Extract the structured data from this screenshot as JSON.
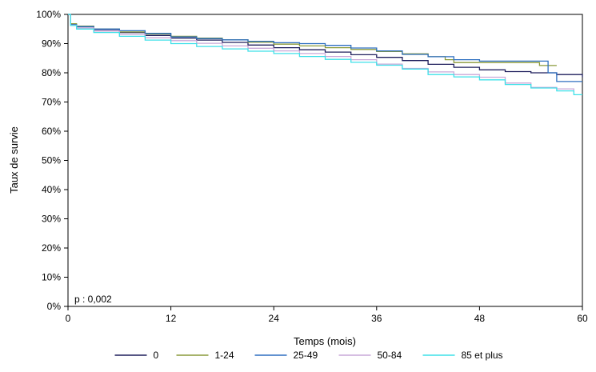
{
  "chart_data": {
    "type": "line",
    "xlabel": "Temps (mois)",
    "ylabel": "Taux de survie",
    "xlim": [
      0,
      60
    ],
    "ylim": [
      0,
      100
    ],
    "xticks": [
      0,
      12,
      24,
      36,
      48,
      60
    ],
    "yticks": [
      0,
      10,
      20,
      30,
      40,
      50,
      60,
      70,
      80,
      90,
      100
    ],
    "ytick_suffix": "%",
    "grid": false,
    "legend_position": "bottom",
    "annotation": "p : 0,002",
    "series": [
      {
        "name": "0",
        "color": "#1f1f5c",
        "x": [
          0,
          0.3,
          1,
          3,
          6,
          9,
          12,
          15,
          18,
          21,
          24,
          27,
          30,
          33,
          36,
          39,
          42,
          45,
          48,
          51,
          54,
          57,
          60
        ],
        "y": [
          100,
          96.5,
          95.8,
          94.8,
          93.8,
          92.8,
          91.9,
          91.2,
          90.4,
          89.5,
          88.6,
          87.9,
          87.1,
          86.2,
          85.3,
          84.2,
          82.9,
          81.9,
          81.0,
          80.4,
          80.0,
          79.4,
          78.5
        ]
      },
      {
        "name": "1-24",
        "color": "#8a9a3a",
        "x": [
          0,
          0.3,
          1,
          3,
          6,
          9,
          12,
          15,
          18,
          21,
          24,
          27,
          30,
          33,
          36,
          39,
          42,
          44,
          45,
          48,
          51,
          54,
          55,
          57
        ],
        "y": [
          100,
          96.8,
          96.0,
          95.0,
          94.0,
          93.3,
          92.5,
          91.9,
          91.3,
          90.5,
          89.8,
          89.2,
          88.6,
          88.0,
          87.3,
          86.5,
          85.5,
          84.5,
          83.5,
          83.5,
          83.5,
          83.5,
          82.5,
          82.5
        ]
      },
      {
        "name": "25-49",
        "color": "#2e6fc0",
        "x": [
          0,
          0.3,
          1,
          3,
          6,
          9,
          12,
          15,
          18,
          21,
          24,
          27,
          30,
          33,
          36,
          39,
          42,
          45,
          48,
          51,
          54,
          56,
          57,
          60
        ],
        "y": [
          100,
          96.5,
          95.8,
          95.0,
          94.4,
          93.5,
          92.3,
          91.7,
          91.3,
          90.8,
          90.3,
          90.0,
          89.4,
          88.5,
          87.5,
          86.3,
          85.5,
          84.5,
          84.0,
          84.0,
          84.0,
          80.0,
          77.0,
          77.0
        ]
      },
      {
        "name": "50-84",
        "color": "#c9a8d8",
        "x": [
          0,
          0.3,
          1,
          3,
          6,
          9,
          12,
          15,
          18,
          21,
          24,
          27,
          30,
          33,
          36,
          39,
          42,
          45,
          48,
          51,
          54,
          57,
          59
        ],
        "y": [
          100,
          96.3,
          95.4,
          94.3,
          93.2,
          92.0,
          91.0,
          90.1,
          89.2,
          88.4,
          87.5,
          86.6,
          85.6,
          84.5,
          83.0,
          81.5,
          80.3,
          79.4,
          78.5,
          76.5,
          75.0,
          74.5,
          74.0
        ]
      },
      {
        "name": "85 et plus",
        "color": "#3ee0e8",
        "x": [
          0,
          0.3,
          1,
          3,
          6,
          9,
          12,
          15,
          18,
          21,
          24,
          27,
          30,
          33,
          36,
          39,
          42,
          45,
          48,
          51,
          54,
          57,
          59,
          60
        ],
        "y": [
          100,
          96.2,
          95.0,
          93.8,
          92.5,
          91.2,
          90.0,
          89.0,
          88.2,
          87.4,
          86.6,
          85.6,
          84.6,
          83.6,
          82.6,
          81.3,
          79.4,
          78.6,
          77.6,
          76.0,
          74.8,
          73.8,
          72.5,
          72.5
        ]
      }
    ]
  }
}
